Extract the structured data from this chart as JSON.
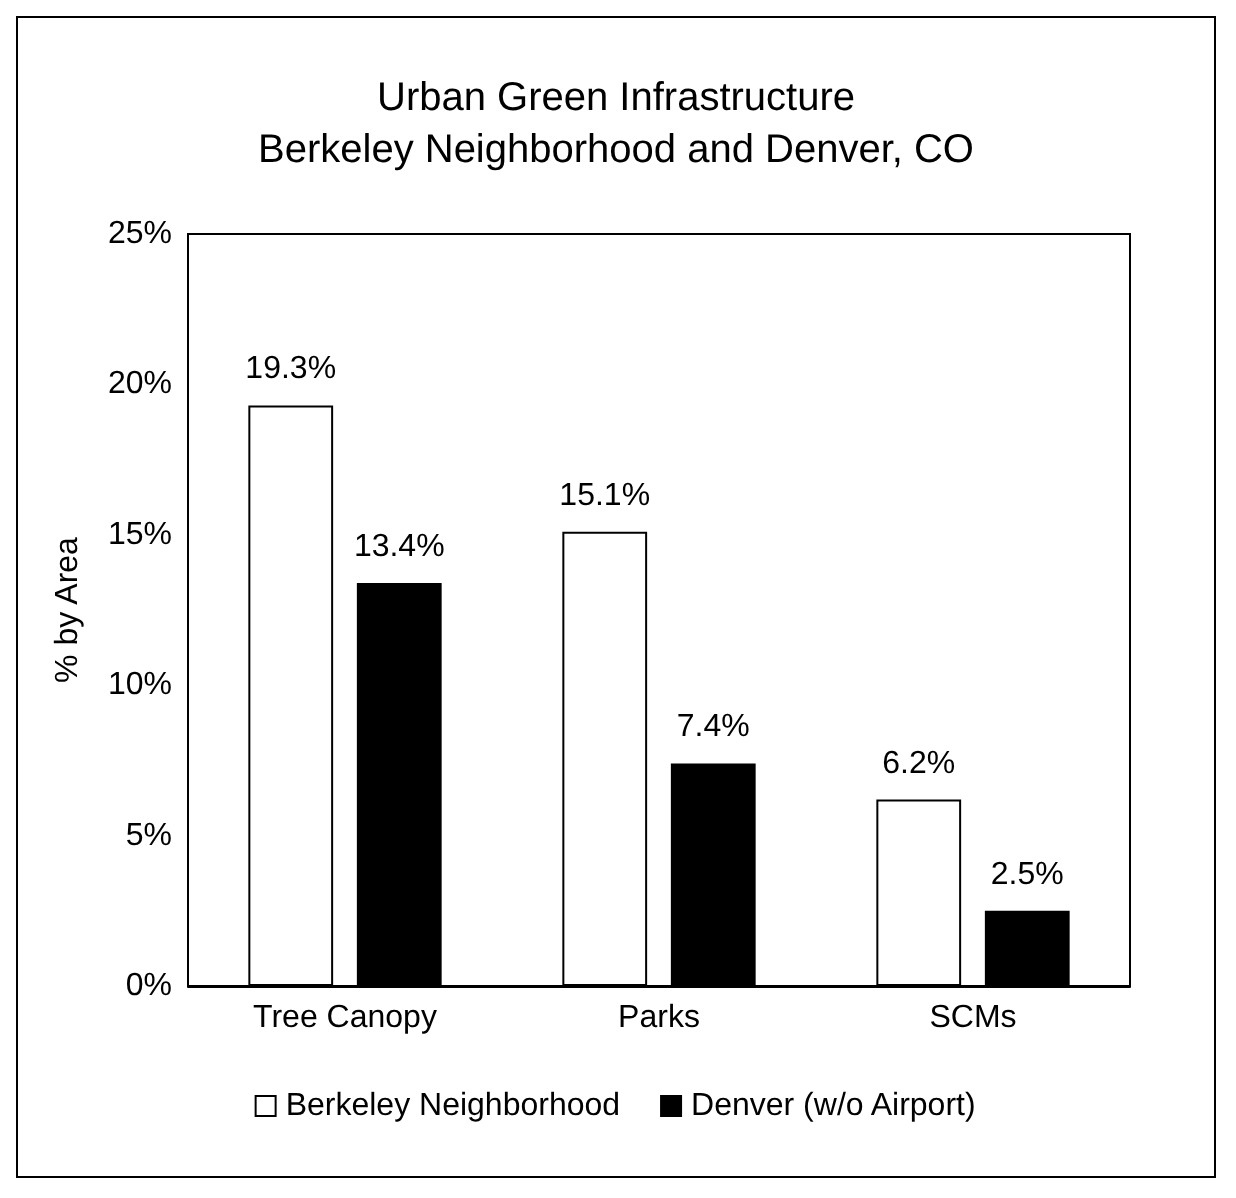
{
  "chart_data": {
    "type": "bar",
    "title": "Urban Green Infrastructure\nBerkeley Neighborhood and Denver, CO",
    "ylabel": "% by Area",
    "categories": [
      "Tree Canopy",
      "Parks",
      "SCMs"
    ],
    "series": [
      {
        "name": "Berkeley Neighborhood",
        "color": "#ffffff",
        "values": [
          19.3,
          15.1,
          6.2
        ],
        "value_labels": [
          "19.3%",
          "15.1%",
          "6.2%"
        ]
      },
      {
        "name": "Denver (w/o Airport)",
        "color": "#000000",
        "values": [
          13.4,
          7.4,
          2.5
        ],
        "value_labels": [
          "13.4%",
          "7.4%",
          "2.5%"
        ]
      }
    ],
    "ylim": [
      0,
      25
    ],
    "yticks": [
      {
        "value": 0,
        "label": "0%"
      },
      {
        "value": 5,
        "label": "5%"
      },
      {
        "value": 10,
        "label": "10%"
      },
      {
        "value": 15,
        "label": "15%"
      },
      {
        "value": 20,
        "label": "20%"
      },
      {
        "value": 25,
        "label": "25%"
      }
    ],
    "grid": false,
    "legend": "bottom"
  }
}
